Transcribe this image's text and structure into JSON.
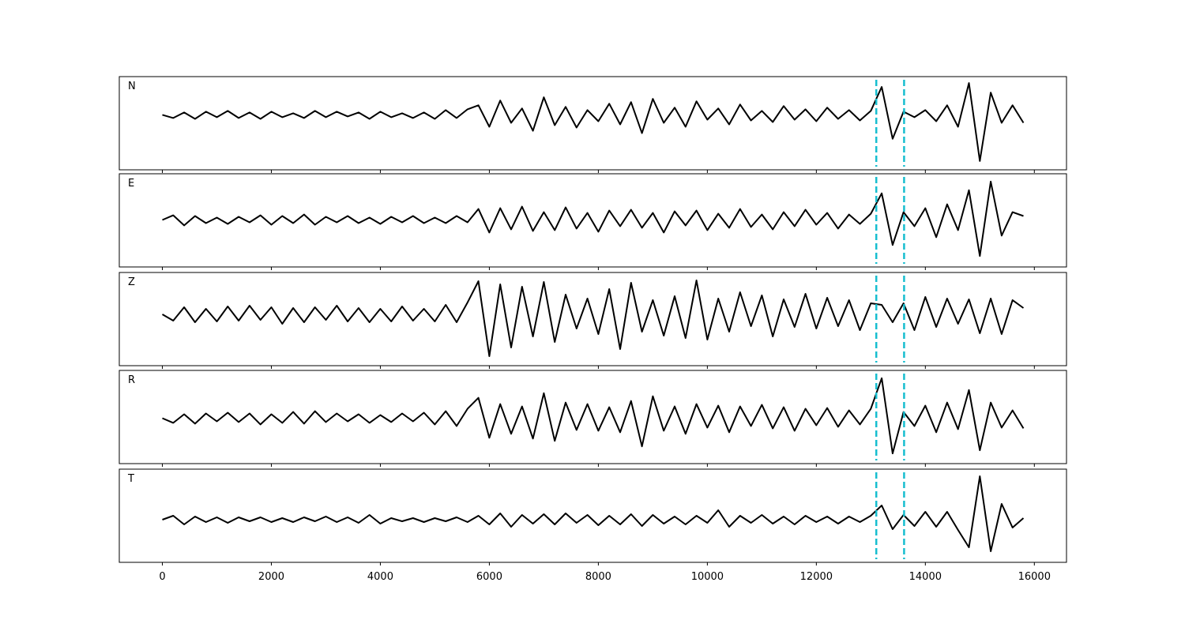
{
  "chart_data": {
    "type": "line",
    "subplots": true,
    "x": [
      0,
      200,
      400,
      600,
      800,
      1000,
      1200,
      1400,
      1600,
      1800,
      2000,
      2200,
      2400,
      2600,
      2800,
      3000,
      3200,
      3400,
      3600,
      3800,
      4000,
      4200,
      4400,
      4600,
      4800,
      5000,
      5200,
      5400,
      5600,
      5800,
      6000,
      6200,
      6400,
      6600,
      6800,
      7000,
      7200,
      7400,
      7600,
      7800,
      8000,
      8200,
      8400,
      8600,
      8800,
      9000,
      9200,
      9400,
      9600,
      9800,
      10000,
      10200,
      10400,
      10600,
      10800,
      11000,
      11200,
      11400,
      11600,
      11800,
      12000,
      12200,
      12400,
      12600,
      12800,
      13000,
      13200,
      13400,
      13600,
      13800,
      14000,
      14200,
      14400,
      14600,
      14800,
      15000,
      15200,
      15400,
      15600,
      15800
    ],
    "xlim": [
      -790,
      16590
    ],
    "xticks": [
      0,
      2000,
      4000,
      6000,
      8000,
      10000,
      12000,
      14000,
      16000
    ],
    "vlines": [
      13100,
      13610
    ],
    "vline_color": "#17becf",
    "series": [
      {
        "name": "N",
        "color": "#000000",
        "ylim": [
          -6.9,
          4.8
        ],
        "values": [
          0,
          -0.4,
          0.3,
          -0.5,
          0.4,
          -0.3,
          0.5,
          -0.4,
          0.3,
          -0.5,
          0.4,
          -0.3,
          0.2,
          -0.4,
          0.5,
          -0.3,
          0.4,
          -0.2,
          0.3,
          -0.5,
          0.4,
          -0.3,
          0.2,
          -0.4,
          0.3,
          -0.5,
          0.6,
          -0.4,
          0.7,
          1.2,
          -1.5,
          1.8,
          -1.0,
          0.8,
          -2.0,
          2.2,
          -1.3,
          1.0,
          -1.6,
          0.6,
          -0.8,
          1.4,
          -1.2,
          1.6,
          -2.3,
          2.0,
          -1.0,
          0.9,
          -1.5,
          1.7,
          -0.6,
          0.8,
          -1.2,
          1.3,
          -0.7,
          0.5,
          -0.9,
          1.1,
          -0.6,
          0.7,
          -0.8,
          0.9,
          -0.5,
          0.6,
          -0.7,
          0.5,
          3.5,
          -3.0,
          0.4,
          -0.3,
          0.6,
          -0.8,
          1.2,
          -1.5,
          4.0,
          -5.8,
          2.8,
          -1.0,
          1.2,
          -1.0
        ]
      },
      {
        "name": "E",
        "color": "#000000",
        "ylim": [
          -6.0,
          5.9
        ],
        "values": [
          0,
          0.6,
          -0.7,
          0.5,
          -0.4,
          0.3,
          -0.5,
          0.4,
          -0.3,
          0.6,
          -0.6,
          0.5,
          -0.4,
          0.7,
          -0.6,
          0.4,
          -0.3,
          0.5,
          -0.4,
          0.3,
          -0.5,
          0.4,
          -0.3,
          0.5,
          -0.4,
          0.3,
          -0.4,
          0.5,
          -0.3,
          1.4,
          -1.6,
          1.5,
          -1.2,
          1.7,
          -1.4,
          1.0,
          -1.3,
          1.6,
          -1.1,
          0.9,
          -1.5,
          1.2,
          -0.8,
          1.3,
          -1.0,
          0.9,
          -1.6,
          1.1,
          -0.7,
          1.2,
          -1.3,
          0.8,
          -1.0,
          1.4,
          -0.9,
          0.7,
          -1.2,
          1.0,
          -0.8,
          1.3,
          -0.6,
          0.9,
          -1.1,
          0.7,
          -0.5,
          0.8,
          3.4,
          -3.2,
          1.0,
          -0.8,
          1.5,
          -2.2,
          2.0,
          -1.3,
          3.8,
          -4.6,
          4.9,
          -2.0,
          1.0,
          0.5
        ]
      },
      {
        "name": "Z",
        "color": "#000000",
        "ylim": [
          -6.5,
          5.3
        ],
        "values": [
          0,
          -0.8,
          0.9,
          -1.0,
          0.7,
          -0.9,
          1.0,
          -0.8,
          1.1,
          -0.7,
          0.9,
          -1.2,
          0.8,
          -1.0,
          0.9,
          -0.7,
          1.1,
          -0.9,
          0.8,
          -1.0,
          0.7,
          -0.9,
          1.0,
          -0.8,
          0.7,
          -0.9,
          1.2,
          -1.0,
          1.5,
          4.2,
          -5.3,
          3.8,
          -4.2,
          3.5,
          -2.8,
          4.1,
          -3.5,
          2.5,
          -1.8,
          2.0,
          -2.5,
          3.2,
          -4.4,
          4.0,
          -2.2,
          1.8,
          -2.7,
          2.3,
          -3.0,
          4.3,
          -3.2,
          2.0,
          -2.2,
          2.8,
          -1.5,
          2.4,
          -2.8,
          1.9,
          -1.6,
          2.6,
          -1.8,
          2.1,
          -1.5,
          1.8,
          -2.0,
          1.4,
          1.2,
          -1.0,
          1.4,
          -2.0,
          2.2,
          -1.6,
          2.0,
          -1.2,
          1.9,
          -2.4,
          2.0,
          -2.5,
          1.8,
          0.8
        ]
      },
      {
        "name": "R",
        "color": "#000000",
        "ylim": [
          -5.8,
          6.1
        ],
        "values": [
          0,
          -0.6,
          0.5,
          -0.7,
          0.6,
          -0.4,
          0.7,
          -0.5,
          0.6,
          -0.8,
          0.5,
          -0.6,
          0.8,
          -0.7,
          0.9,
          -0.5,
          0.6,
          -0.4,
          0.5,
          -0.6,
          0.4,
          -0.5,
          0.6,
          -0.4,
          0.7,
          -0.8,
          0.9,
          -1.0,
          1.2,
          2.6,
          -2.5,
          1.8,
          -2.0,
          1.5,
          -2.6,
          3.2,
          -2.9,
          2.0,
          -1.5,
          1.8,
          -1.6,
          1.4,
          -1.8,
          2.2,
          -3.6,
          2.8,
          -1.6,
          1.5,
          -2.0,
          1.8,
          -1.2,
          1.6,
          -1.8,
          1.5,
          -1.0,
          1.7,
          -1.3,
          1.4,
          -1.6,
          1.2,
          -0.9,
          1.3,
          -1.1,
          1.0,
          -0.8,
          1.2,
          5.1,
          -4.5,
          0.8,
          -1.0,
          1.6,
          -1.8,
          2.0,
          -1.4,
          3.6,
          -4.1,
          2.0,
          -1.2,
          1.0,
          -1.3
        ]
      },
      {
        "name": "T",
        "color": "#000000",
        "ylim": [
          -5.4,
          6.4
        ],
        "values": [
          0,
          0.5,
          -0.6,
          0.4,
          -0.3,
          0.3,
          -0.4,
          0.3,
          -0.2,
          0.3,
          -0.3,
          0.2,
          -0.3,
          0.3,
          -0.2,
          0.4,
          -0.3,
          0.3,
          -0.4,
          0.6,
          -0.5,
          0.2,
          -0.2,
          0.2,
          -0.3,
          0.2,
          -0.2,
          0.3,
          -0.3,
          0.5,
          -0.6,
          0.8,
          -0.9,
          0.6,
          -0.5,
          0.7,
          -0.6,
          0.8,
          -0.4,
          0.6,
          -0.7,
          0.5,
          -0.6,
          0.7,
          -0.8,
          0.6,
          -0.5,
          0.4,
          -0.6,
          0.5,
          -0.4,
          1.2,
          -0.9,
          0.5,
          -0.4,
          0.6,
          -0.5,
          0.4,
          -0.6,
          0.5,
          -0.3,
          0.4,
          -0.5,
          0.4,
          -0.3,
          0.5,
          1.8,
          -1.2,
          0.6,
          -0.8,
          1.0,
          -0.9,
          1.0,
          -1.3,
          -3.5,
          5.5,
          -4.0,
          2.0,
          -1.0,
          0.2
        ]
      }
    ]
  }
}
